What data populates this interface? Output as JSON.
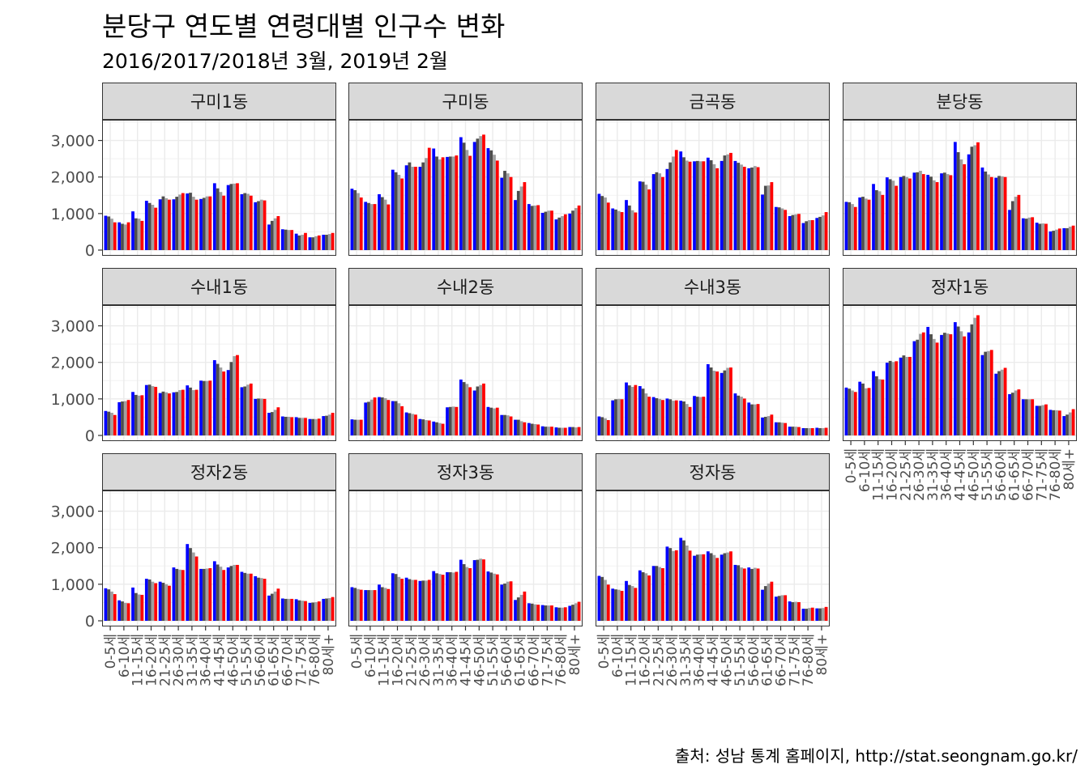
{
  "title": "분당구 연도별 연령대별 인구수 변화",
  "subtitle": "2016/2017/2018년 3월, 2019년 2월",
  "caption": "출처: 성남 통계 홈페이지, http://stat.seongnam.go.kr/",
  "chart_data": {
    "type": "bar",
    "title": "분당구 연도별 연령대별 인구수 변화",
    "subtitle": "2016/2017/2018년 3월, 2019년 2월",
    "facet": "wrap",
    "ylim": [
      0,
      3500
    ],
    "yticks": [
      0,
      1000,
      2000,
      3000
    ],
    "ytick_labels": [
      "0",
      "1,000",
      "2,000",
      "3,000"
    ],
    "grid": true,
    "series_colors": [
      "#0000ff",
      "#4d4d4d",
      "#a0a0a0",
      "#ff0000"
    ],
    "categories": [
      "0-5세",
      "6-10세",
      "11-15세",
      "16-20세",
      "21-25세",
      "26-30세",
      "31-35세",
      "36-40세",
      "41-45세",
      "46-50세",
      "51-55세",
      "56-60세",
      "61-65세",
      "66-70세",
      "71-75세",
      "76-80세",
      "80세+"
    ],
    "panels": [
      {
        "name": "구미1동",
        "values": [
          [
            940,
            920,
            860,
            760
          ],
          [
            760,
            720,
            700,
            760
          ],
          [
            1060,
            870,
            860,
            800
          ],
          [
            1350,
            1290,
            1240,
            1160
          ],
          [
            1390,
            1470,
            1420,
            1380
          ],
          [
            1390,
            1460,
            1520,
            1560
          ],
          [
            1550,
            1570,
            1460,
            1380
          ],
          [
            1400,
            1430,
            1470,
            1470
          ],
          [
            1830,
            1690,
            1590,
            1490
          ],
          [
            1780,
            1810,
            1820,
            1830
          ],
          [
            1530,
            1560,
            1540,
            1490
          ],
          [
            1310,
            1340,
            1380,
            1360
          ],
          [
            700,
            800,
            870,
            930
          ],
          [
            570,
            560,
            550,
            550
          ],
          [
            450,
            400,
            420,
            470
          ],
          [
            350,
            350,
            380,
            400
          ],
          [
            420,
            420,
            440,
            470
          ]
        ]
      },
      {
        "name": "구미동",
        "values": [
          [
            1680,
            1640,
            1560,
            1440
          ],
          [
            1320,
            1290,
            1260,
            1260
          ],
          [
            1530,
            1450,
            1380,
            1250
          ],
          [
            2200,
            2130,
            2060,
            1960
          ],
          [
            2320,
            2400,
            2280,
            2280
          ],
          [
            2280,
            2400,
            2520,
            2800
          ],
          [
            2780,
            2560,
            2480,
            2540
          ],
          [
            2550,
            2560,
            2560,
            2590
          ],
          [
            3090,
            2940,
            2740,
            2580
          ],
          [
            2960,
            3050,
            3120,
            3160
          ],
          [
            2790,
            2730,
            2610,
            2450
          ],
          [
            1980,
            2170,
            2100,
            2000
          ],
          [
            1370,
            1620,
            1740,
            1860
          ],
          [
            1260,
            1210,
            1220,
            1230
          ],
          [
            1020,
            1050,
            1080,
            1080
          ],
          [
            840,
            890,
            930,
            980
          ],
          [
            1000,
            1080,
            1150,
            1220
          ]
        ]
      },
      {
        "name": "금곡동",
        "values": [
          [
            1540,
            1480,
            1440,
            1300
          ],
          [
            1140,
            1110,
            1070,
            1040
          ],
          [
            1370,
            1220,
            1090,
            1030
          ],
          [
            1880,
            1870,
            1790,
            1660
          ],
          [
            2080,
            2130,
            2100,
            2000
          ],
          [
            2220,
            2400,
            2560,
            2740
          ],
          [
            2700,
            2540,
            2450,
            2420
          ],
          [
            2430,
            2440,
            2430,
            2430
          ],
          [
            2530,
            2460,
            2350,
            2240
          ],
          [
            2440,
            2590,
            2620,
            2660
          ],
          [
            2440,
            2390,
            2340,
            2280
          ],
          [
            2240,
            2260,
            2300,
            2270
          ],
          [
            1520,
            1760,
            1770,
            1860
          ],
          [
            1180,
            1170,
            1140,
            1100
          ],
          [
            930,
            960,
            980,
            990
          ],
          [
            740,
            790,
            820,
            820
          ],
          [
            880,
            910,
            950,
            1040
          ]
        ]
      },
      {
        "name": "분당동",
        "values": [
          [
            1320,
            1310,
            1260,
            1180
          ],
          [
            1440,
            1460,
            1410,
            1380
          ],
          [
            1810,
            1640,
            1610,
            1510
          ],
          [
            1990,
            1940,
            1900,
            1760
          ],
          [
            2000,
            2030,
            2000,
            1960
          ],
          [
            2120,
            2130,
            2170,
            2080
          ],
          [
            2060,
            2010,
            1910,
            1860
          ],
          [
            2100,
            2120,
            2080,
            2050
          ],
          [
            2960,
            2680,
            2480,
            2350
          ],
          [
            2620,
            2830,
            2870,
            2950
          ],
          [
            2260,
            2150,
            2070,
            2000
          ],
          [
            1980,
            2030,
            2020,
            2000
          ],
          [
            1100,
            1340,
            1460,
            1510
          ],
          [
            870,
            860,
            890,
            900
          ],
          [
            750,
            720,
            730,
            720
          ],
          [
            510,
            530,
            560,
            590
          ],
          [
            600,
            600,
            640,
            670
          ]
        ]
      },
      {
        "name": "수내1동",
        "values": [
          [
            670,
            650,
            620,
            560
          ],
          [
            910,
            930,
            940,
            970
          ],
          [
            1190,
            1110,
            1090,
            1100
          ],
          [
            1380,
            1390,
            1350,
            1330
          ],
          [
            1160,
            1200,
            1180,
            1150
          ],
          [
            1180,
            1190,
            1240,
            1250
          ],
          [
            1370,
            1310,
            1240,
            1250
          ],
          [
            1500,
            1490,
            1490,
            1500
          ],
          [
            2060,
            1960,
            1860,
            1750
          ],
          [
            1790,
            2010,
            2170,
            2200
          ],
          [
            1320,
            1340,
            1390,
            1420
          ],
          [
            1000,
            1010,
            1010,
            1000
          ],
          [
            620,
            640,
            700,
            770
          ],
          [
            520,
            510,
            510,
            500
          ],
          [
            500,
            480,
            480,
            480
          ],
          [
            450,
            450,
            450,
            460
          ],
          [
            530,
            540,
            570,
            620
          ]
        ]
      },
      {
        "name": "수내2동",
        "values": [
          [
            440,
            430,
            430,
            430
          ],
          [
            900,
            920,
            980,
            1040
          ],
          [
            1050,
            1040,
            1020,
            970
          ],
          [
            940,
            940,
            880,
            800
          ],
          [
            630,
            610,
            590,
            570
          ],
          [
            450,
            440,
            420,
            410
          ],
          [
            380,
            360,
            340,
            320
          ],
          [
            770,
            780,
            790,
            780
          ],
          [
            1530,
            1460,
            1410,
            1320
          ],
          [
            1230,
            1340,
            1380,
            1420
          ],
          [
            780,
            760,
            740,
            760
          ],
          [
            560,
            560,
            550,
            520
          ],
          [
            430,
            430,
            390,
            360
          ],
          [
            340,
            320,
            310,
            300
          ],
          [
            250,
            240,
            240,
            240
          ],
          [
            220,
            210,
            210,
            210
          ],
          [
            230,
            230,
            220,
            230
          ]
        ]
      },
      {
        "name": "수내3동",
        "values": [
          [
            520,
            500,
            470,
            420
          ],
          [
            960,
            990,
            1000,
            990
          ],
          [
            1450,
            1370,
            1330,
            1380
          ],
          [
            1350,
            1280,
            1150,
            1060
          ],
          [
            1050,
            1020,
            1000,
            970
          ],
          [
            1010,
            990,
            950,
            960
          ],
          [
            950,
            930,
            860,
            780
          ],
          [
            1080,
            1060,
            1050,
            1060
          ],
          [
            1950,
            1860,
            1770,
            1750
          ],
          [
            1710,
            1780,
            1850,
            1860
          ],
          [
            1150,
            1090,
            1060,
            1010
          ],
          [
            900,
            850,
            850,
            860
          ],
          [
            490,
            510,
            530,
            570
          ],
          [
            360,
            360,
            350,
            340
          ],
          [
            240,
            240,
            240,
            230
          ],
          [
            200,
            200,
            200,
            200
          ],
          [
            210,
            200,
            200,
            210
          ]
        ]
      },
      {
        "name": "정자1동",
        "values": [
          [
            1310,
            1280,
            1230,
            1190
          ],
          [
            1470,
            1420,
            1290,
            1300
          ],
          [
            1760,
            1620,
            1540,
            1530
          ],
          [
            1990,
            2040,
            2010,
            2030
          ],
          [
            2130,
            2190,
            2150,
            2150
          ],
          [
            2580,
            2620,
            2780,
            2820
          ],
          [
            2970,
            2770,
            2640,
            2540
          ],
          [
            2750,
            2810,
            2790,
            2770
          ],
          [
            3100,
            2980,
            2850,
            2710
          ],
          [
            2820,
            3040,
            3220,
            3290
          ],
          [
            2200,
            2290,
            2310,
            2340
          ],
          [
            1690,
            1760,
            1800,
            1850
          ],
          [
            1130,
            1170,
            1230,
            1260
          ],
          [
            990,
            990,
            990,
            990
          ],
          [
            810,
            810,
            830,
            850
          ],
          [
            700,
            690,
            690,
            680
          ],
          [
            530,
            570,
            630,
            720
          ]
        ]
      },
      {
        "name": "정자2동",
        "values": [
          [
            890,
            860,
            800,
            730
          ],
          [
            560,
            530,
            490,
            480
          ],
          [
            910,
            760,
            720,
            710
          ],
          [
            1150,
            1130,
            1070,
            1030
          ],
          [
            1070,
            1040,
            1000,
            960
          ],
          [
            1460,
            1420,
            1400,
            1390
          ],
          [
            2100,
            1990,
            1870,
            1760
          ],
          [
            1420,
            1420,
            1430,
            1440
          ],
          [
            1630,
            1540,
            1480,
            1390
          ],
          [
            1460,
            1500,
            1530,
            1530
          ],
          [
            1340,
            1310,
            1290,
            1290
          ],
          [
            1220,
            1180,
            1170,
            1150
          ],
          [
            690,
            740,
            800,
            880
          ],
          [
            610,
            600,
            600,
            600
          ],
          [
            590,
            560,
            550,
            540
          ],
          [
            490,
            500,
            510,
            530
          ],
          [
            600,
            610,
            620,
            650
          ]
        ]
      },
      {
        "name": "정자3동",
        "values": [
          [
            920,
            900,
            870,
            850
          ],
          [
            840,
            840,
            840,
            840
          ],
          [
            990,
            920,
            900,
            870
          ],
          [
            1300,
            1280,
            1200,
            1150
          ],
          [
            1180,
            1140,
            1120,
            1120
          ],
          [
            1090,
            1100,
            1100,
            1120
          ],
          [
            1360,
            1300,
            1280,
            1260
          ],
          [
            1330,
            1330,
            1320,
            1340
          ],
          [
            1670,
            1550,
            1470,
            1440
          ],
          [
            1660,
            1670,
            1700,
            1680
          ],
          [
            1350,
            1320,
            1290,
            1270
          ],
          [
            990,
            1020,
            1070,
            1080
          ],
          [
            570,
            640,
            710,
            800
          ],
          [
            480,
            470,
            450,
            440
          ],
          [
            430,
            420,
            420,
            420
          ],
          [
            370,
            360,
            360,
            370
          ],
          [
            410,
            440,
            480,
            520
          ]
        ]
      },
      {
        "name": "정자동",
        "values": [
          [
            1230,
            1200,
            1120,
            990
          ],
          [
            880,
            860,
            850,
            820
          ],
          [
            1090,
            980,
            950,
            900
          ],
          [
            1380,
            1330,
            1300,
            1240
          ],
          [
            1500,
            1500,
            1470,
            1440
          ],
          [
            2030,
            1990,
            1910,
            1930
          ],
          [
            2270,
            2200,
            2060,
            1920
          ],
          [
            1780,
            1810,
            1820,
            1820
          ],
          [
            1900,
            1850,
            1800,
            1720
          ],
          [
            1810,
            1850,
            1870,
            1900
          ],
          [
            1530,
            1520,
            1460,
            1430
          ],
          [
            1460,
            1420,
            1450,
            1430
          ],
          [
            850,
            950,
            1020,
            1070
          ],
          [
            660,
            680,
            700,
            700
          ],
          [
            530,
            510,
            520,
            510
          ],
          [
            330,
            330,
            350,
            360
          ],
          [
            340,
            340,
            350,
            380
          ]
        ]
      }
    ]
  }
}
